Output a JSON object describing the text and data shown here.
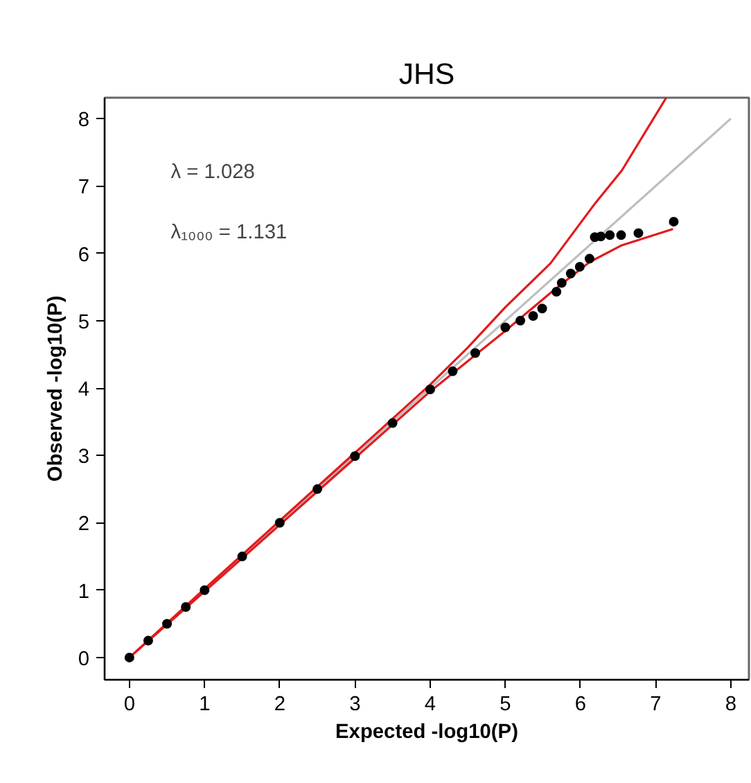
{
  "chart_data": {
    "type": "scatter",
    "title": "JHS",
    "xlabel": "Expected -log10(P)",
    "ylabel": "Observed -log10(P)",
    "annotations": [
      "λ = 1.028",
      "λ₁₀₀₀ = 1.131"
    ],
    "xlim": [
      -0.33,
      8.24
    ],
    "ylim": [
      -0.33,
      8.31
    ],
    "xticks": [
      0,
      1,
      2,
      3,
      4,
      5,
      6,
      7,
      8
    ],
    "yticks": [
      0,
      1,
      2,
      3,
      4,
      5,
      6,
      7,
      8
    ],
    "grid": false,
    "series": [
      {
        "type": "line",
        "color": "#bebebe",
        "x": [
          0,
          8
        ],
        "values": [
          0,
          8
        ]
      },
      {
        "type": "line",
        "color": "#e41a1c",
        "x": [
          0,
          1,
          2,
          3,
          4,
          4.5,
          5,
          5.6,
          6.2,
          6.55,
          7.14
        ],
        "values": [
          0,
          1.02,
          2.03,
          3.04,
          4.05,
          4.6,
          5.2,
          5.85,
          6.75,
          7.23,
          8.31
        ]
      },
      {
        "type": "line",
        "color": "#e41a1c",
        "x": [
          0,
          1,
          2,
          3,
          4,
          4.5,
          5,
          5.62,
          6.12,
          6.55,
          7.23
        ],
        "values": [
          0,
          0.98,
          1.97,
          2.96,
          3.95,
          4.4,
          4.85,
          5.43,
          5.87,
          6.12,
          6.36
        ]
      },
      {
        "color": "#000000",
        "marker": "circle",
        "x": [
          0,
          0.25,
          0.5,
          0.75,
          1,
          1.5,
          2,
          2.5,
          3,
          3.5,
          4,
          4.3,
          4.6,
          5.0,
          5.2,
          5.37,
          5.49,
          5.68,
          5.75,
          5.87,
          5.99,
          6.12,
          6.19,
          6.27,
          6.39,
          6.54,
          6.77,
          7.24
        ],
        "values": [
          0,
          0.25,
          0.5,
          0.75,
          1,
          1.5,
          2,
          2.5,
          2.99,
          3.48,
          3.98,
          4.25,
          4.52,
          4.9,
          5.0,
          5.07,
          5.18,
          5.43,
          5.56,
          5.7,
          5.8,
          5.92,
          6.24,
          6.25,
          6.27,
          6.27,
          6.3,
          6.47
        ]
      }
    ]
  }
}
